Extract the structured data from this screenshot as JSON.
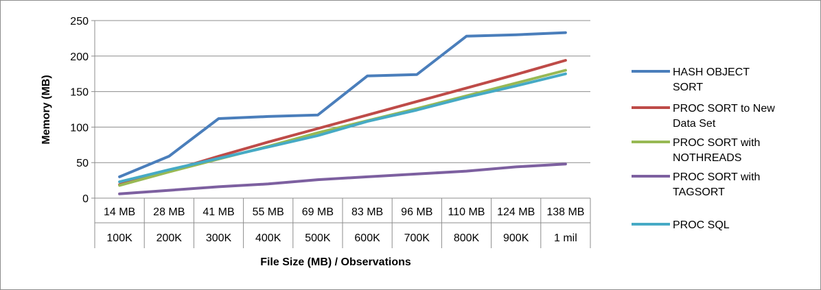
{
  "chart_data": {
    "type": "line",
    "title": "",
    "xlabel": "File Size (MB) / Observations",
    "ylabel": "Memory (MB)",
    "ylim": [
      0,
      250
    ],
    "yticks": [
      0,
      50,
      100,
      150,
      200,
      250
    ],
    "grid": "horizontal",
    "legend_position": "right",
    "categories_size": [
      "14 MB",
      "28 MB",
      "41 MB",
      "55 MB",
      "69 MB",
      "83 MB",
      "96 MB",
      "110 MB",
      "124 MB",
      "138 MB"
    ],
    "categories_obs": [
      "100K",
      "200K",
      "300K",
      "400K",
      "500K",
      "600K",
      "700K",
      "800K",
      "900K",
      "1 mil"
    ],
    "series": [
      {
        "name": "HASH OBJECT SORT",
        "legend_lines": [
          "HASH OBJECT",
          "SORT"
        ],
        "color": "#4a7ebb",
        "values": [
          30,
          59,
          112,
          115,
          117,
          172,
          174,
          228,
          230,
          233
        ]
      },
      {
        "name": "PROC SORT to New Data Set",
        "legend_lines": [
          "PROC SORT to New",
          "Data Set"
        ],
        "color": "#be4b48",
        "values": [
          19,
          38,
          59,
          79,
          98,
          117,
          136,
          155,
          174,
          194
        ]
      },
      {
        "name": "PROC SORT with NOTHREADS",
        "legend_lines": [
          "PROC SORT with",
          "NOTHREADS"
        ],
        "color": "#98b954",
        "values": [
          18,
          37,
          55,
          73,
          92,
          109,
          126,
          144,
          162,
          180
        ]
      },
      {
        "name": "PROC SORT with TAGSORT",
        "legend_lines": [
          "PROC SORT with",
          "TAGSORT"
        ],
        "color": "#7d60a0",
        "values": [
          6,
          11,
          16,
          20,
          26,
          30,
          34,
          38,
          44,
          48
        ]
      },
      {
        "name": "PROC SQL",
        "legend_lines": [
          "PROC SQL"
        ],
        "color": "#46aac5",
        "values": [
          23,
          40,
          56,
          72,
          88,
          108,
          124,
          142,
          158,
          175
        ]
      }
    ]
  }
}
